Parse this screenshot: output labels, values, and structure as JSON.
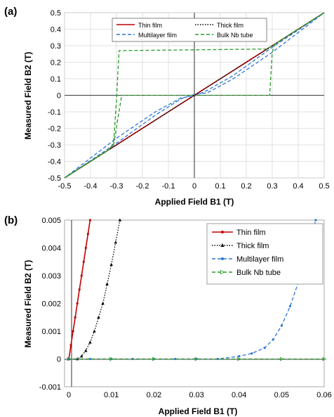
{
  "chart_data": [
    {
      "panel_label": "(a)",
      "type": "line",
      "xlabel": "Applied Field B1 (T)",
      "ylabel": "Measured Field B2 (T)",
      "xlim": [
        -0.5,
        0.5
      ],
      "ylim": [
        -0.5,
        0.5
      ],
      "xticks": [
        "-0.5",
        "-0.4",
        "-0.3",
        "-0.2",
        "-0.1",
        "0",
        "0.1",
        "0.2",
        "0.3",
        "0.4",
        "0.5"
      ],
      "yticks": [
        "0.5",
        "0.4",
        "0.3",
        "0.2",
        "0.1",
        "0",
        "-0.1",
        "-0.2",
        "-0.3",
        "-0.4",
        "-0.5"
      ],
      "grid": true,
      "legend_position": "top-center",
      "series": [
        {
          "name": "Thin film",
          "color": "#c00000",
          "style": "solid",
          "x": [
            -0.5,
            0.5
          ],
          "y": [
            -0.5,
            0.5
          ]
        },
        {
          "name": "Thick film",
          "color": "#000000",
          "style": "dotted",
          "x": [
            -0.5,
            -0.25,
            0,
            0.25,
            0.5
          ],
          "y": [
            -0.5,
            -0.25,
            0,
            0.25,
            0.5
          ]
        },
        {
          "name": "Multilayer film",
          "color": "#2e75d6",
          "style": "dashed",
          "x": [
            -0.5,
            -0.3,
            -0.15,
            -0.05,
            0,
            0.05,
            0.15,
            0.3,
            0.5,
            0.3,
            0.15,
            0.05,
            0,
            -0.05,
            -0.15,
            -0.3,
            -0.5
          ],
          "y": [
            -0.5,
            -0.29,
            -0.12,
            -0.02,
            0.005,
            0.015,
            0.1,
            0.26,
            0.5,
            0.29,
            0.12,
            0.03,
            -0.005,
            -0.015,
            -0.1,
            -0.26,
            -0.5
          ]
        },
        {
          "name": "Bulk Nb tube",
          "color": "#2a9a2a",
          "style": "dashed",
          "x": [
            -0.5,
            -0.32,
            -0.31,
            -0.3,
            -0.29,
            0.28,
            0.31,
            0.33,
            0.5,
            0.31,
            0.3,
            0.29,
            -0.28,
            -0.31,
            -0.33,
            -0.5
          ],
          "y": [
            -0.5,
            -0.32,
            -0.26,
            -0.03,
            0.27,
            0.28,
            0.31,
            0.33,
            0.5,
            0.31,
            0.26,
            0.0,
            0.0,
            -0.29,
            -0.33,
            -0.5
          ]
        }
      ]
    },
    {
      "panel_label": "(b)",
      "type": "line",
      "xlabel": "Applied Field B1 (T)",
      "ylabel": "Measured Field B2 (T)",
      "xlim": [
        -0.001,
        0.06
      ],
      "ylim": [
        -0.001,
        0.005
      ],
      "xticks": [
        "0",
        "0.01",
        "0.02",
        "0.03",
        "0.04",
        "0.05",
        "0.06"
      ],
      "yticks": [
        "0.005",
        "0.004",
        "0.003",
        "0.002",
        "0.001",
        "0",
        "-0.001"
      ],
      "grid": false,
      "legend_position": "top-right",
      "series": [
        {
          "name": "Thin film",
          "color": "#c00000",
          "style": "solid",
          "marker": "dot",
          "x": [
            0.0,
            0.0005,
            0.001,
            0.0015,
            0.002,
            0.0025,
            0.003,
            0.0035,
            0.004,
            0.0045,
            0.005
          ],
          "y": [
            0.0,
            0.0005,
            0.001,
            0.0015,
            0.002,
            0.0025,
            0.003,
            0.0035,
            0.004,
            0.0045,
            0.005
          ]
        },
        {
          "name": "Thick film",
          "color": "#000000",
          "style": "dotted",
          "marker": "triangle",
          "x": [
            0.0,
            0.002,
            0.003,
            0.004,
            0.005,
            0.006,
            0.007,
            0.008,
            0.009,
            0.01,
            0.011,
            0.012
          ],
          "y": [
            0.0,
            0.0,
            0.0001,
            0.0003,
            0.0006,
            0.001,
            0.0015,
            0.002,
            0.0027,
            0.0034,
            0.0042,
            0.005
          ]
        },
        {
          "name": "Multilayer film",
          "color": "#2e75d6",
          "style": "dashed",
          "marker": "dot",
          "x": [
            0.0,
            0.005,
            0.01,
            0.015,
            0.02,
            0.025,
            0.03,
            0.035,
            0.04,
            0.043,
            0.046,
            0.048,
            0.05,
            0.052,
            0.054,
            0.056,
            0.058
          ],
          "y": [
            0.0,
            0.0,
            0.0,
            0.0,
            0.0,
            0.0,
            0.0,
            0.0,
            0.0001,
            0.0002,
            0.0004,
            0.0007,
            0.0012,
            0.0019,
            0.0028,
            0.0038,
            0.005
          ]
        },
        {
          "name": "Bulk Nb tube",
          "color": "#2a9a2a",
          "style": "dashed",
          "marker": "triangle-right",
          "x": [
            0.0,
            0.01,
            0.02,
            0.03,
            0.04,
            0.05,
            0.06
          ],
          "y": [
            0.0,
            0.0,
            0.0,
            0.0,
            0.0,
            0.0,
            0.0
          ]
        }
      ]
    }
  ]
}
